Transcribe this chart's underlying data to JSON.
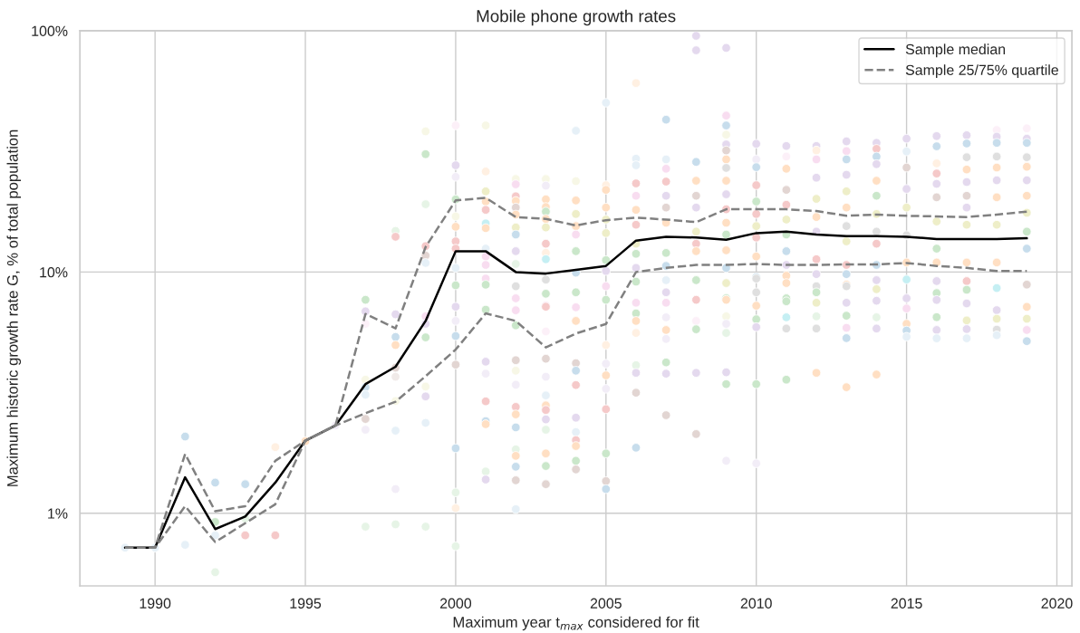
{
  "chart_data": {
    "type": "line",
    "title": "Mobile phone growth rates",
    "xlabel": "Maximum year t$_{max}$ considered for fit",
    "ylabel": "Maximum historic growth rate G, % of total population",
    "xlim": [
      1987.5,
      2020.5
    ],
    "xticks": [
      1990,
      1995,
      2000,
      2005,
      2010,
      2015,
      2020
    ],
    "ylim": [
      0.5,
      100
    ],
    "yticks": [
      {
        "value": 1,
        "label": "1%"
      },
      {
        "value": 10,
        "label": "10%"
      },
      {
        "value": 100,
        "label": "100%"
      }
    ],
    "log": true,
    "grid": true,
    "legend": "top right",
    "x": [
      1989,
      1990,
      1991,
      1992,
      1993,
      1994,
      1995,
      1996,
      1997,
      1998,
      1999,
      2000,
      2001,
      2002,
      2003,
      2004,
      2005,
      2006,
      2007,
      2008,
      2009,
      2010,
      2011,
      2012,
      2013,
      2014,
      2015,
      2016,
      2017,
      2018,
      2019
    ],
    "series": [
      {
        "type": "scatter",
        "marker": "circle",
        "x": [
          1989,
          1990,
          1991,
          1991,
          1992,
          1992,
          1992,
          1992,
          1993,
          1993,
          1993,
          1994,
          1994,
          1995,
          1996,
          1997,
          1997,
          1997,
          1997,
          1997,
          1997,
          1997,
          1997,
          1997,
          1998,
          1998,
          1998,
          1998,
          1998,
          1998,
          1998,
          1998,
          1998,
          1998,
          1998,
          1999,
          1999,
          1999,
          1999,
          1999,
          1999,
          1999,
          1999,
          1999,
          1999,
          1999,
          1999,
          1999,
          2000,
          2000,
          2000,
          2000,
          2000,
          2000,
          2000,
          2000,
          2000,
          2000,
          2000,
          2000,
          2000,
          2000,
          2000,
          2000,
          2000,
          2000,
          2001,
          2001,
          2001,
          2001,
          2001,
          2001,
          2001,
          2001,
          2001,
          2001,
          2001,
          2001,
          2001,
          2001,
          2001,
          2001,
          2001,
          2001,
          2001,
          2001,
          2002,
          2002,
          2002,
          2002,
          2002,
          2002,
          2002,
          2002,
          2002,
          2002,
          2002,
          2002,
          2002,
          2002,
          2002,
          2002,
          2002,
          2002,
          2002,
          2002,
          2002,
          2002,
          2002,
          2002,
          2002,
          2003,
          2003,
          2003,
          2003,
          2003,
          2003,
          2003,
          2003,
          2003,
          2003,
          2003,
          2003,
          2003,
          2003,
          2003,
          2003,
          2003,
          2003,
          2003,
          2003,
          2003,
          2003,
          2003,
          2003,
          2003,
          2004,
          2004,
          2004,
          2004,
          2004,
          2004,
          2004,
          2004,
          2004,
          2004,
          2004,
          2004,
          2004,
          2004,
          2004,
          2004,
          2004,
          2004,
          2004,
          2004,
          2005,
          2005,
          2005,
          2005,
          2005,
          2005,
          2005,
          2005,
          2005,
          2005,
          2005,
          2005,
          2005,
          2005,
          2005,
          2005,
          2005,
          2005,
          2006,
          2006,
          2006,
          2006,
          2006,
          2006,
          2006,
          2006,
          2006,
          2006,
          2006,
          2006,
          2006,
          2006,
          2006,
          2006,
          2006,
          2006,
          2006,
          2007,
          2007,
          2007,
          2007,
          2007,
          2007,
          2007,
          2007,
          2007,
          2007,
          2007,
          2007,
          2007,
          2007,
          2007,
          2007,
          2007,
          2007,
          2008,
          2008,
          2008,
          2008,
          2008,
          2008,
          2008,
          2008,
          2008,
          2008,
          2008,
          2008,
          2008,
          2008,
          2008,
          2009,
          2009,
          2009,
          2009,
          2009,
          2009,
          2009,
          2009,
          2009,
          2009,
          2009,
          2009,
          2009,
          2009,
          2009,
          2009,
          2009,
          2009,
          2009,
          2009,
          2009,
          2009,
          2009,
          2009,
          2010,
          2010,
          2010,
          2010,
          2010,
          2010,
          2010,
          2010,
          2010,
          2010,
          2010,
          2010,
          2010,
          2010,
          2010,
          2010,
          2010,
          2011,
          2011,
          2011,
          2011,
          2011,
          2011,
          2011,
          2011,
          2011,
          2011,
          2011,
          2011,
          2011,
          2011,
          2011,
          2011,
          2012,
          2012,
          2012,
          2012,
          2012,
          2012,
          2012,
          2012,
          2012,
          2012,
          2012,
          2012,
          2012,
          2012,
          2012,
          2013,
          2013,
          2013,
          2013,
          2013,
          2013,
          2013,
          2013,
          2013,
          2013,
          2013,
          2013,
          2013,
          2013,
          2013,
          2013,
          2013,
          2014,
          2014,
          2014,
          2014,
          2014,
          2014,
          2014,
          2014,
          2014,
          2014,
          2014,
          2014,
          2014,
          2014,
          2014,
          2014,
          2015,
          2015,
          2015,
          2015,
          2015,
          2015,
          2015,
          2015,
          2015,
          2015,
          2015,
          2015,
          2015,
          2016,
          2016,
          2016,
          2016,
          2016,
          2016,
          2016,
          2016,
          2016,
          2016,
          2016,
          2016,
          2016,
          2016,
          2016,
          2017,
          2017,
          2017,
          2017,
          2017,
          2017,
          2017,
          2017,
          2017,
          2017,
          2017,
          2017,
          2017,
          2017,
          2017,
          2018,
          2018,
          2018,
          2018,
          2018,
          2018,
          2018,
          2018,
          2018,
          2018,
          2018,
          2018,
          2018,
          2018,
          2019,
          2019,
          2019,
          2019,
          2019,
          2019,
          2019,
          2019,
          2019,
          2019,
          2019,
          2019,
          2019,
          2019,
          2019
        ],
        "values": [
          0.72,
          0.72,
          2.08,
          0.74,
          1.34,
          0.92,
          0.81,
          0.57,
          1.32,
          0.81,
          0.95,
          1.88,
          0.81,
          1.99,
          2.31,
          7.67,
          6.87,
          6.1,
          3.58,
          3.33,
          3.1,
          2.46,
          2.22,
          0.88,
          14.8,
          14.0,
          6.68,
          5.38,
          4.98,
          4.01,
          3.68,
          2.92,
          2.2,
          1.26,
          0.9,
          38.3,
          30.8,
          19.1,
          12.8,
          11.7,
          10.9,
          6.55,
          6.1,
          5.36,
          3.35,
          3.05,
          2.37,
          0.88,
          40.5,
          27.7,
          24.8,
          20.0,
          17.0,
          15.4,
          13.4,
          12.5,
          10.4,
          8.81,
          7.18,
          6.27,
          5.43,
          4.13,
          1.86,
          1.22,
          1.05,
          0.73,
          40.5,
          26.1,
          21.6,
          19.6,
          18.1,
          15.9,
          15.2,
          12.5,
          11.6,
          10.7,
          9.39,
          8.86,
          6.98,
          4.25,
          3.79,
          2.91,
          2.41,
          2.34,
          1.49,
          1.38,
          24.3,
          23.1,
          20.6,
          19.7,
          18.5,
          17.3,
          15.3,
          14.3,
          12.2,
          10.8,
          8.73,
          7.78,
          6.94,
          6.01,
          4.31,
          3.9,
          3.41,
          2.76,
          2.57,
          2.27,
          1.84,
          1.73,
          1.56,
          1.37,
          1.04,
          24.3,
          22.8,
          20.0,
          18.6,
          17.8,
          16.6,
          15.3,
          13.1,
          12.0,
          11.3,
          9.3,
          8.13,
          7.25,
          7.18,
          5.67,
          4.37,
          3.68,
          3.08,
          2.8,
          2.68,
          2.45,
          2.22,
          1.77,
          1.57,
          1.32,
          38.5,
          23.8,
          19.8,
          17.4,
          15.5,
          14.3,
          12.2,
          9.94,
          8.24,
          7.14,
          6.27,
          4.19,
          3.9,
          3.4,
          2.49,
          2.17,
          2.01,
          1.9,
          1.65,
          1.52,
          50.3,
          22.9,
          21.9,
          18.5,
          16.5,
          14.5,
          11.2,
          10.1,
          8.73,
          7.67,
          4.98,
          4.17,
          3.73,
          3.28,
          2.7,
          1.77,
          1.36,
          1.26,
          60.7,
          29.5,
          27.7,
          23.3,
          20.7,
          18.1,
          15.7,
          13.1,
          11.9,
          10.4,
          9.12,
          7.46,
          6.74,
          6.27,
          5.59,
          4.11,
          3.82,
          3.16,
          1.87,
          42.8,
          29.3,
          26.8,
          23.7,
          20.7,
          18.5,
          16.0,
          12.0,
          10.6,
          9.25,
          8.24,
          7.46,
          6.49,
          5.75,
          5.28,
          4.22,
          3.79,
          2.55,
          95.3,
          83.0,
          28.6,
          23.9,
          20.7,
          18.5,
          14.7,
          13.1,
          12.2,
          9.25,
          7.67,
          6.27,
          5.79,
          3.82,
          2.13,
          84.9,
          44.5,
          40.5,
          37.1,
          33.8,
          31.9,
          29.3,
          27.0,
          23.9,
          21.0,
          18.2,
          16.0,
          14.3,
          12.3,
          10.4,
          9.0,
          7.78,
          7.67,
          6.55,
          6.1,
          5.59,
          3.84,
          3.43,
          1.65,
          34.0,
          29.3,
          27.2,
          22.9,
          19.6,
          17.4,
          15.5,
          13.9,
          11.6,
          9.52,
          9.39,
          8.24,
          7.25,
          6.37,
          5.91,
          3.43,
          1.61,
          33.3,
          30.1,
          26.8,
          21.9,
          19.0,
          16.5,
          14.3,
          12.2,
          10.7,
          9.66,
          9.0,
          7.78,
          7.56,
          6.49,
          5.83,
          3.58,
          33.3,
          31.9,
          29.3,
          24.6,
          20.1,
          16.9,
          14.7,
          11.3,
          9.8,
          8.73,
          8.24,
          7.46,
          6.55,
          5.83,
          3.82,
          34.8,
          31.7,
          29.3,
          25.3,
          21.6,
          18.5,
          15.5,
          13.4,
          10.7,
          9.8,
          8.86,
          8.73,
          7.46,
          6.59,
          5.87,
          5.32,
          3.33,
          34.3,
          32.4,
          30.1,
          28.0,
          23.9,
          20.7,
          17.4,
          14.7,
          13.1,
          10.7,
          9.25,
          8.49,
          7.6,
          6.49,
          5.83,
          3.76,
          35.7,
          31.6,
          27.1,
          22.1,
          18.5,
          14.2,
          10.95,
          9.31,
          7.78,
          7.06,
          6.1,
          5.72,
          5.39,
          36.6,
          33.2,
          28.2,
          25.6,
          23.2,
          20.4,
          16.2,
          12.5,
          10.95,
          9.17,
          8.18,
          7.66,
          6.5,
          5.75,
          5.31,
          36.9,
          34.1,
          29.9,
          26.6,
          23.6,
          20.7,
          18.5,
          15.7,
          10.95,
          9.17,
          8.44,
          7.41,
          6.3,
          5.8,
          5.31,
          38.8,
          36.4,
          34.3,
          30.1,
          27.1,
          24.0,
          20.4,
          15.7,
          10.95,
          8.58,
          6.95,
          6.4,
          5.77,
          5.47,
          39.4,
          35.7,
          34.3,
          29.9,
          27.3,
          24.0,
          20.7,
          17.6,
          14.7,
          12.5,
          8.87,
          7.17,
          6.4,
          5.75,
          5.17
        ],
        "colors": [
          "#e6f0f7",
          "#e6f0f7",
          "#c7ddec",
          "#e6f0f7",
          "#c7ddec",
          "#cae7ca",
          "#e6f0f7",
          "#e6f4e6",
          "#c7ddec",
          "#f5c9c9",
          "#e6f4e6",
          "#fff0e2",
          "#f5c9c9",
          "#ffdfc3",
          "#f2edf7",
          "#cae7ca",
          "#e4d9ee",
          "#fcf0f8",
          "#f7f7e6",
          "#c7ddec",
          "#e6f0f7",
          "#e2d5d2",
          "#f2edf7",
          "#e6f4e6",
          "#e6f4e6",
          "#f5c9c9",
          "#e4d9ee",
          "#c7ddec",
          "#ffdfc3",
          "#e2d5d2",
          "#f0eae8",
          "#f7f7e6",
          "#e6f0f7",
          "#f2edf7",
          "#e6f4e6",
          "#f7f7e6",
          "#cae7ca",
          "#e6f4e6",
          "#f5c9c9",
          "#e2d5d2",
          "#e6f0f7",
          "#f8ddf0",
          "#e4d9ee",
          "#cae7ca",
          "#f7f7e6",
          "#e4d9ee",
          "#e6f0f7",
          "#e6f4e6",
          "#fcf0f8",
          "#e4d9ee",
          "#f2edf7",
          "#cae7ca",
          "#f7f7e6",
          "#ffdfc3",
          "#f5c9c9",
          "#f5c9c9",
          "#e6f0f7",
          "#cae7ca",
          "#e4d9ee",
          "#f2edf7",
          "#c7ddec",
          "#e2d5d2",
          "#c7ddec",
          "#e6f4e6",
          "#fff0e2",
          "#e6f4e6",
          "#f7f7e6",
          "#fff0e2",
          "#eeeec8",
          "#ffdfc3",
          "#f5c9c9",
          "#c5eff3",
          "#ffdfc3",
          "#e6f0f7",
          "#f8ddf0",
          "#f8ddf0",
          "#f8ddf0",
          "#cae7ca",
          "#cae7ca",
          "#e4d9ee",
          "#f2edf7",
          "#f5c9c9",
          "#c7ddec",
          "#ffdfc3",
          "#e6f4e6",
          "#e4d9ee",
          "#f7f7e6",
          "#f8ddf0",
          "#f5c9c9",
          "#ffdfc3",
          "#e2d5d2",
          "#ffdfc3",
          "#eeeec8",
          "#c7ddec",
          "#e4d9ee",
          "#e6f4e6",
          "#dfdfdf",
          "#f8ddf0",
          "#f8ddf0",
          "#cae7ca",
          "#e2d5d2",
          "#f7f7e6",
          "#f2edf7",
          "#f5c9c9",
          "#ffdfc3",
          "#c7ddec",
          "#e6f4e6",
          "#ffdfc3",
          "#c7ddec",
          "#e2d5d2",
          "#e6f0f7",
          "#f7f7e6",
          "#f2edf7",
          "#ffdfc3",
          "#ffdfc3",
          "#cae7ca",
          "#ffdfc3",
          "#eeeec8",
          "#f5c9c9",
          "#fff0e2",
          "#c5eff3",
          "#dfdfdf",
          "#cae7ca",
          "#f8ddf0",
          "#f5c9c9",
          "#fcf0f8",
          "#e2d5d2",
          "#f2edf7",
          "#e6f0f7",
          "#ffdfc3",
          "#f5c9c9",
          "#e4d9ee",
          "#e6f4e6",
          "#ffdfc3",
          "#cae7ca",
          "#e2d5d2",
          "#e6f0f7",
          "#f7f7e6",
          "#ffdfc3",
          "#eeeec8",
          "#ffdfc3",
          "#f8ddf0",
          "#cae7ca",
          "#c7ddec",
          "#cae7ca",
          "#f8ddf0",
          "#ffdfc3",
          "#e2d5d2",
          "#c7ddec",
          "#f5c9c9",
          "#e4d9ee",
          "#e6f0f7",
          "#f5c9c9",
          "#ffdfc3",
          "#cae7ca",
          "#e2d5d2",
          "#e6f0f7",
          "#fff0e2",
          "#ffdfc3",
          "#ffdfc3",
          "#eeeec8",
          "#eeeec8",
          "#cae7ca",
          "#e4d9ee",
          "#f8ddf0",
          "#cae7ca",
          "#fff0e2",
          "#f2edf7",
          "#ffdfc3",
          "#f2edf7",
          "#f5c9c9",
          "#cae7ca",
          "#e2d5d2",
          "#c7ddec",
          "#fff0e2",
          "#e6f0f7",
          "#e6f0f7",
          "#f5c9c9",
          "#f8ddf0",
          "#ffdfc3",
          "#f5c9c9",
          "#eeeec8",
          "#cae7ca",
          "#e4d9ee",
          "#cae7ca",
          "#f8ddf0",
          "#cae7ca",
          "#ffdfc3",
          "#fff0e2",
          "#e6f4e6",
          "#e4d9ee",
          "#e2d5d2",
          "#c7ddec",
          "#c7ddec",
          "#e6f0f7",
          "#f8ddf0",
          "#f5c9c9",
          "#e4d9ee",
          "#e2d5d2",
          "#ffdfc3",
          "#cae7ca",
          "#c7ddec",
          "#e6f0f7",
          "#e4d9ee",
          "#f8ddf0",
          "#f2edf7",
          "#ffdfc3",
          "#f2edf7",
          "#cae7ca",
          "#e4d9ee",
          "#e2d5d2",
          "#e4d9ee",
          "#e4d9ee",
          "#c7ddec",
          "#ffdfc3",
          "#e2d5d2",
          "#e4d9ee",
          "#eeeec8",
          "#f5c9c9",
          "#ffdfc3",
          "#cae7ca",
          "#f5c9c9",
          "#fcf0f8",
          "#cae7ca",
          "#e4d9ee",
          "#e2d5d2",
          "#e4d9ee",
          "#f8ddf0",
          "#c7ddec",
          "#f7f7e6",
          "#e4d9ee",
          "#e2d5d2",
          "#ffdfc3",
          "#dfdfdf",
          "#ffdfc3",
          "#e4d9ee",
          "#f5c9c9",
          "#ffdfc3",
          "#cae7ca",
          "#ffdfc3",
          "#c7ddec",
          "#eeeec8",
          "#cae7ca",
          "#ffdfc3",
          "#f7f7e6",
          "#f2edf7",
          "#e6f4e6",
          "#e4d9ee",
          "#cae7ca",
          "#f2edf7",
          "#e4d9ee",
          "#f2edf7",
          "#c7ddec",
          "#f5c9c9",
          "#cae7ca",
          "#f5c9c9",
          "#eeeec8",
          "#f5c9c9",
          "#ffdfc3",
          "#c7ddec",
          "#dfdfdf",
          "#dfdfdf",
          "#ffdfc3",
          "#cae7ca",
          "#e4d9ee",
          "#cae7ca",
          "#f2edf7",
          "#e4d9ee",
          "#fcf0f8",
          "#ffdfc3",
          "#e2d5d2",
          "#f5c9c9",
          "#eeeec8",
          "#cae7ca",
          "#c7ddec",
          "#e4d9ee",
          "#ffdfc3",
          "#ffdfc3",
          "#cae7ca",
          "#cae7ca",
          "#c5eff3",
          "#dfdfdf",
          "#cae7ca",
          "#e4d9ee",
          "#fff0e2",
          "#f8ddf0",
          "#e4d9ee",
          "#eeeec8",
          "#ffdfc3",
          "#e4d9ee",
          "#f5c9c9",
          "#e4d9ee",
          "#dfdfdf",
          "#cae7ca",
          "#eeeec8",
          "#e6f4e6",
          "#dfdfdf",
          "#ffdfc3",
          "#e4d9ee",
          "#f8ddf0",
          "#c7ddec",
          "#e4d9ee",
          "#eeeec8",
          "#ffdfc3",
          "#dfdfdf",
          "#eeeec8",
          "#f5c9c9",
          "#c7ddec",
          "#ffdfc3",
          "#dfdfdf",
          "#e4d9ee",
          "#cae7ca",
          "#f8ddf0",
          "#c7ddec",
          "#ffdfc3",
          "#e4d9ee",
          "#f5c9c9",
          "#c7ddec",
          "#e4d9ee",
          "#ffdfc3",
          "#cae7ca",
          "#eeeec8",
          "#dfdfdf",
          "#f5c9c9",
          "#c7ddec",
          "#e4d9ee",
          "#eeeec8",
          "#e4d9ee",
          "#e6f4e6",
          "#e4d9ee",
          "#ffdfc3",
          "#e4d9ee",
          "#e6f0f7",
          "#e2d5d2",
          "#e4d9ee",
          "#eeeec8",
          "#dfdfdf",
          "#ffdfc3",
          "#c5eff3",
          "#e4d9ee",
          "#f8ddf0",
          "#ffdfc3",
          "#c7ddec",
          "#e6f0f7",
          "#e4d9ee",
          "#c7ddec",
          "#fff0e2",
          "#f5c9c9",
          "#e4d9ee",
          "#e2d5d2",
          "#eeeec8",
          "#cae7ca",
          "#ffdfc3",
          "#e4d9ee",
          "#cae7ca",
          "#e4d9ee",
          "#cae7ca",
          "#e4d9ee",
          "#e6f0f7",
          "#e4d9ee",
          "#c7ddec",
          "#dfdfdf",
          "#ffdfc3",
          "#e4d9ee",
          "#e2d5d2",
          "#e4d9ee",
          "#eeeec8",
          "#ffdfc3",
          "#f5c9c9",
          "#cae7ca",
          "#e4d9ee",
          "#eeeec8",
          "#e4d9ee",
          "#e6f0f7",
          "#fcf0f8",
          "#e4d9ee",
          "#c7ddec",
          "#dfdfdf",
          "#ffdfc3",
          "#e4d9ee",
          "#ffdfc3",
          "#eeeec8",
          "#ffdfc3",
          "#c5eff3",
          "#e4d9ee",
          "#eeeec8",
          "#dfdfdf",
          "#e6f0f7",
          "#fcf0f8",
          "#e4d9ee",
          "#c7ddec",
          "#dfdfdf",
          "#ffdfc3",
          "#e4d9ee",
          "#ffdfc3",
          "#eeeec8",
          "#cae7ca",
          "#c7ddec",
          "#e2d5d2",
          "#ffdfc3",
          "#eeeec8",
          "#f8ddf0",
          "#c7ddec"
        ]
      },
      {
        "name": "Sample median",
        "color": "#000000",
        "line_style": "solid",
        "values": [
          0.72,
          0.72,
          1.41,
          0.86,
          0.97,
          1.34,
          2.0,
          2.31,
          3.43,
          4.05,
          6.27,
          12.2,
          12.2,
          10.0,
          9.85,
          10.2,
          10.6,
          13.5,
          14.0,
          13.9,
          13.6,
          14.5,
          14.7,
          14.3,
          14.1,
          14.1,
          14.0,
          13.7,
          13.7,
          13.7,
          13.8
        ]
      },
      {
        "name": "Sample 25/75% quartile",
        "color": "#808080",
        "line_style": "dashed",
        "values": [
          0.72,
          0.72,
          1.76,
          1.02,
          1.07,
          1.65,
          2.0,
          2.31,
          6.7,
          5.84,
          12.7,
          19.8,
          20.3,
          16.9,
          16.6,
          15.6,
          16.4,
          16.8,
          16.5,
          16.1,
          18.2,
          18.2,
          18.2,
          17.9,
          17.1,
          17.3,
          17.1,
          17.0,
          16.9,
          17.3,
          17.8
        ]
      },
      {
        "color": "#808080",
        "line_style": "dashed",
        "values": [
          0.72,
          0.72,
          1.07,
          0.76,
          0.91,
          1.09,
          2.0,
          2.31,
          2.6,
          2.9,
          3.7,
          4.77,
          6.74,
          6.27,
          4.87,
          5.56,
          6.09,
          10.0,
          10.4,
          10.7,
          10.7,
          10.8,
          10.7,
          10.7,
          10.75,
          10.75,
          10.9,
          10.6,
          10.4,
          10.1,
          10.1
        ]
      }
    ]
  }
}
